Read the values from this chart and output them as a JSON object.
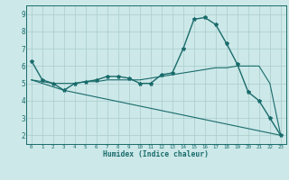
{
  "xlabel": "Humidex (Indice chaleur)",
  "ylabel": "",
  "background_color": "#cce8e8",
  "line_color": "#1a6b6b",
  "xlim": [
    -0.5,
    23.5
  ],
  "ylim": [
    1.5,
    9.5
  ],
  "xticks": [
    0,
    1,
    2,
    3,
    4,
    5,
    6,
    7,
    8,
    9,
    10,
    11,
    12,
    13,
    14,
    15,
    16,
    17,
    18,
    19,
    20,
    21,
    22,
    23
  ],
  "yticks": [
    2,
    3,
    4,
    5,
    6,
    7,
    8,
    9
  ],
  "series": [
    {
      "x": [
        0,
        1,
        2,
        3,
        4,
        5,
        6,
        7,
        8,
        9,
        10,
        11,
        12,
        13,
        14,
        15,
        16,
        17,
        18,
        19,
        20,
        21,
        22,
        23
      ],
      "y": [
        6.3,
        5.2,
        5.0,
        4.6,
        5.0,
        5.1,
        5.2,
        5.4,
        5.4,
        5.3,
        5.0,
        5.0,
        5.5,
        5.6,
        7.0,
        8.7,
        8.8,
        8.4,
        7.3,
        6.1,
        4.5,
        4.0,
        3.0,
        2.0
      ],
      "marker": "*",
      "markersize": 3,
      "linewidth": 1.0
    },
    {
      "x": [
        0,
        1,
        2,
        3,
        4,
        5,
        6,
        7,
        8,
        9,
        10,
        11,
        12,
        13,
        14,
        15,
        16,
        17,
        18,
        19,
        20,
        21,
        22,
        23
      ],
      "y": [
        5.2,
        5.1,
        5.0,
        5.0,
        5.0,
        5.1,
        5.1,
        5.2,
        5.2,
        5.2,
        5.2,
        5.3,
        5.4,
        5.5,
        5.6,
        5.7,
        5.8,
        5.9,
        5.9,
        6.0,
        6.0,
        6.0,
        5.0,
        2.0
      ],
      "marker": null,
      "markersize": 0,
      "linewidth": 0.8
    },
    {
      "x": [
        0,
        3,
        23
      ],
      "y": [
        5.2,
        4.6,
        2.0
      ],
      "marker": null,
      "markersize": 0,
      "linewidth": 0.8
    }
  ]
}
